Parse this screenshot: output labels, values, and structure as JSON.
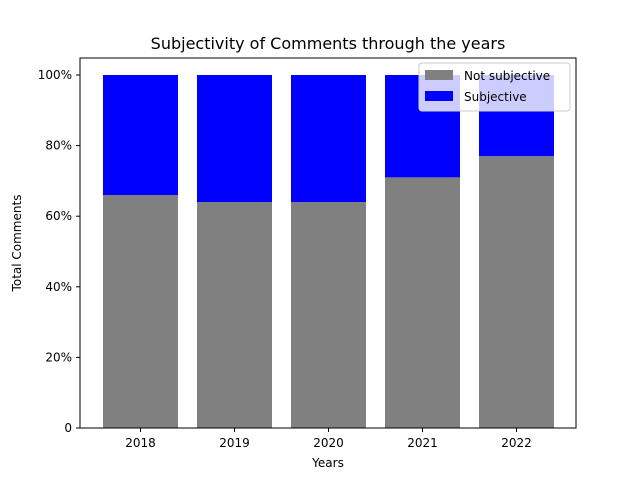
{
  "chart_data": {
    "type": "bar",
    "stacked": true,
    "title": "Subjectivity of Comments through the years",
    "xlabel": "Years",
    "ylabel": "Total Comments",
    "categories": [
      "2018",
      "2019",
      "2020",
      "2021",
      "2022"
    ],
    "series": [
      {
        "name": "Not subjective",
        "values": [
          66,
          64,
          64,
          71,
          77
        ],
        "color": "#808080"
      },
      {
        "name": "Subjective",
        "values": [
          34,
          36,
          36,
          29,
          23
        ],
        "color": "#0000ff"
      }
    ],
    "ylim": [
      0,
      100
    ],
    "yticks": [
      0,
      20,
      40,
      60,
      80,
      100
    ],
    "ytick_labels": [
      "0",
      "20%",
      "40%",
      "60%",
      "80%",
      "100%"
    ],
    "grid": false,
    "legend_position": "top-right"
  }
}
